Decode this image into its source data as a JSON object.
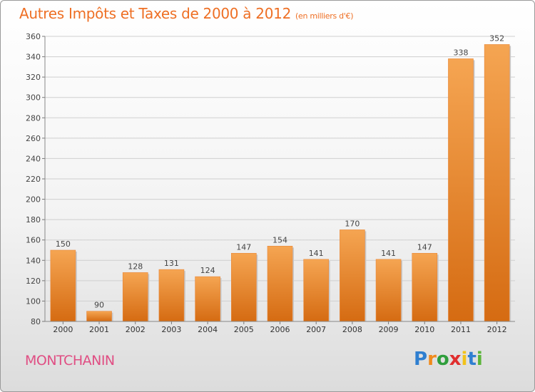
{
  "header": {
    "title": "Autres Impôts et Taxes de 2000 à 2012",
    "unit": "(en milliers d'€)"
  },
  "footer": {
    "commune": "MONTCHANIN",
    "logo_letters": [
      "P",
      "r",
      "o",
      "x",
      "i",
      "t",
      "i"
    ],
    "logo_colors": [
      "#2f7fd0",
      "#f08a1c",
      "#2f9e3c",
      "#e02e2e",
      "#f2c21a",
      "#2f7fd0",
      "#5bb53a"
    ]
  },
  "chart_data": {
    "type": "bar",
    "title": "Autres Impôts et Taxes de 2000 à 2012",
    "categories": [
      "2000",
      "2001",
      "2002",
      "2003",
      "2004",
      "2005",
      "2006",
      "2007",
      "2008",
      "2009",
      "2010",
      "2011",
      "2012"
    ],
    "values": [
      150,
      90,
      128,
      131,
      124,
      147,
      154,
      141,
      170,
      141,
      147,
      338,
      352
    ],
    "value_labels": [
      "150",
      "90",
      "128",
      "131",
      "124",
      "147",
      "154",
      "141",
      "170",
      "141",
      "147",
      "338",
      "352"
    ],
    "ylim": [
      80,
      360
    ],
    "yticks": [
      80,
      100,
      120,
      140,
      160,
      180,
      200,
      220,
      240,
      260,
      280,
      300,
      320,
      340,
      360
    ],
    "ytick_labels": [
      "80",
      "100",
      "120",
      "140",
      "160",
      "180",
      "200",
      "220",
      "240",
      "260",
      "280",
      "300",
      "320",
      "340",
      "360"
    ],
    "grid": true,
    "bar_color": "#f29a3f",
    "bar_color_dark": "#d86d14"
  }
}
